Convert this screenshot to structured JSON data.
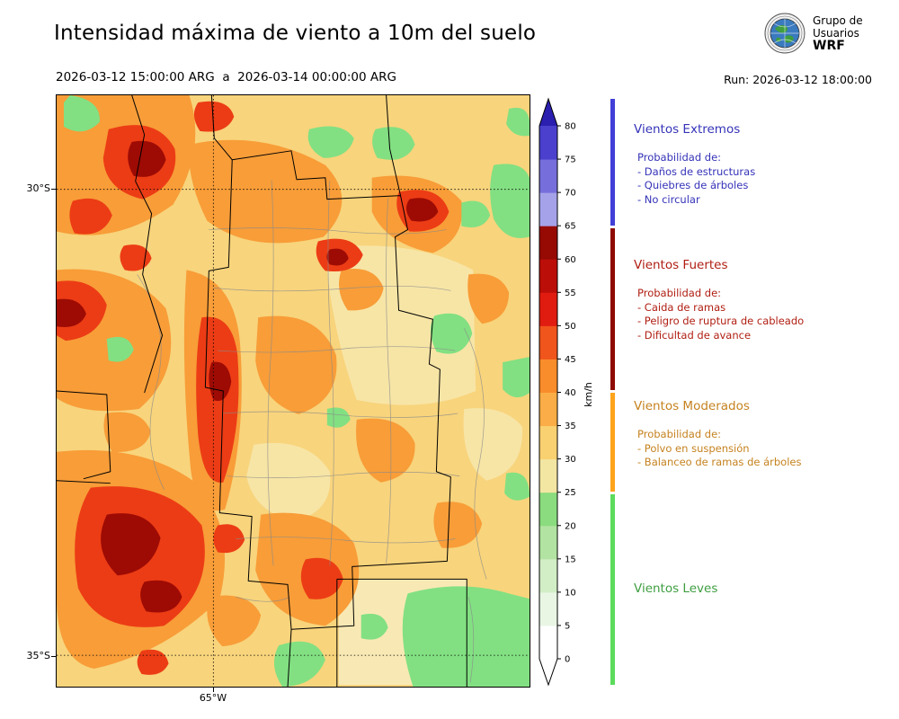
{
  "header": {
    "title": "Intensidad máxima de viento a 10m del suelo",
    "period": "2026-03-12 15:00:00 ARG  a  2026-03-14 00:00:00 ARG",
    "run": "Run: 2026-03-12 18:00:00",
    "logo": {
      "line1": "Grupo de",
      "line2": "Usuarios",
      "line3": "WRF"
    }
  },
  "map": {
    "lat_ticks": [
      {
        "label": "30°S"
      },
      {
        "label": "35°S"
      }
    ],
    "lon_ticks": [
      {
        "label": "65°W"
      }
    ]
  },
  "colorbar": {
    "unit": "km/h",
    "tick_values": [
      0,
      5,
      10,
      15,
      20,
      25,
      30,
      35,
      40,
      45,
      50,
      55,
      60,
      65,
      70,
      75,
      80
    ],
    "segment_colors_bottom_to_top": [
      "#ffffff",
      "#e9f6e4",
      "#d2eec6",
      "#b2e3a2",
      "#8adc7e",
      "#f3e6a3",
      "#fad171",
      "#fbae47",
      "#f98d2b",
      "#f0551c",
      "#e01c10",
      "#bc0e08",
      "#970a04",
      "#a6a2e9",
      "#766fdb",
      "#4a40cd"
    ],
    "over_color": "#2b1fb0",
    "under_color": "#ffffff"
  },
  "legend": {
    "categories": [
      {
        "name": "Vientos Extremos",
        "color": "#3533b8",
        "bar_color": "#423fd8",
        "prob": "Probabilidad de:",
        "items": [
          "- Daños de estructuras",
          "- Quiebres de árboles",
          "- No circular"
        ]
      },
      {
        "name": "Vientos Fuertes",
        "color": "#b01e12",
        "bar_color": "#8e0b04",
        "prob": "Probabilidad de:",
        "items": [
          "- Caida de ramas",
          "- Peligro de ruptura de cableado",
          "- Dificultad de avance"
        ]
      },
      {
        "name": "Vientos Moderados",
        "color": "#c5821f",
        "bar_color": "#ffa41c",
        "prob": "Probabilidad de:",
        "items": [
          "- Polvo en suspensión",
          "- Balanceo de ramas de árboles"
        ]
      },
      {
        "name": "Vientos Leves",
        "color": "#3e9e41",
        "bar_color": "#5cdb5c",
        "items": []
      }
    ]
  }
}
